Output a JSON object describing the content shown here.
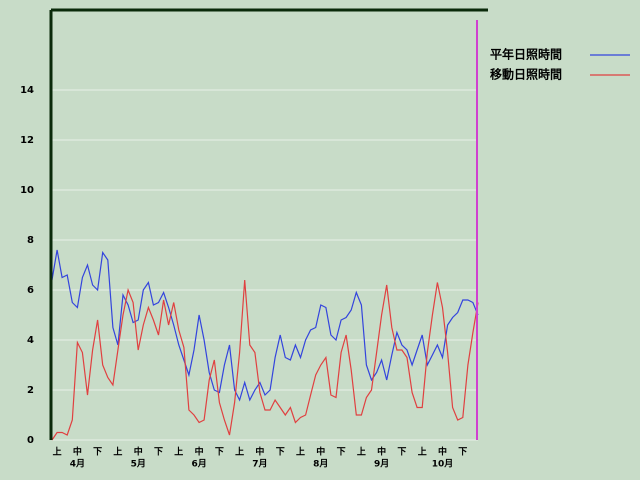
{
  "chart_data": {
    "type": "line",
    "categories": [
      null,
      "上",
      null,
      null,
      null,
      "中",
      null,
      null,
      null,
      "下",
      null,
      null,
      null,
      "上",
      null,
      null,
      null,
      "中",
      null,
      null,
      null,
      "下",
      null,
      null,
      null,
      "上",
      null,
      null,
      null,
      "中",
      null,
      null,
      null,
      "下",
      null,
      null,
      null,
      "上",
      null,
      null,
      null,
      "中",
      null,
      null,
      null,
      "下",
      null,
      null,
      null,
      "上",
      null,
      null,
      null,
      "中",
      null,
      null,
      null,
      "下",
      null,
      null,
      null,
      "上",
      null,
      null,
      null,
      "中",
      null,
      null,
      null,
      "下",
      null,
      null,
      null,
      "上",
      null,
      null,
      null,
      "中",
      null,
      null,
      null,
      "下",
      null,
      null,
      null
    ],
    "month_labels": [
      "4月",
      "5月",
      "6月",
      "7月",
      "8月",
      "9月",
      "10月"
    ],
    "series": [
      {
        "name": "平年日照時間",
        "color": "#3344dd",
        "values": [
          6.4,
          7.6,
          6.5,
          6.6,
          5.5,
          5.3,
          6.5,
          7.0,
          6.2,
          6.0,
          7.5,
          7.2,
          4.5,
          3.8,
          5.8,
          5.4,
          4.7,
          4.8,
          6.0,
          6.3,
          5.4,
          5.5,
          5.9,
          5.3,
          4.6,
          3.8,
          3.2,
          2.6,
          3.6,
          5.0,
          4.0,
          2.7,
          2.0,
          1.9,
          3.0,
          3.8,
          2.0,
          1.6,
          2.3,
          1.6,
          2.0,
          2.3,
          1.8,
          2.0,
          3.3,
          4.2,
          3.3,
          3.2,
          3.8,
          3.3,
          4.0,
          4.4,
          4.5,
          5.4,
          5.3,
          4.2,
          4.0,
          4.8,
          4.9,
          5.2,
          5.9,
          5.4,
          3.0,
          2.4,
          2.7,
          3.2,
          2.4,
          3.4,
          4.3,
          3.8,
          3.6,
          3.0,
          3.6,
          4.2,
          3.0,
          3.4,
          3.8,
          3.3,
          4.6,
          4.9,
          5.1,
          5.6,
          5.6,
          5.5,
          5.0
        ]
      },
      {
        "name": "移動日照時間",
        "color": "#e04040",
        "values": [
          0,
          0.3,
          0.3,
          0.2,
          0.8,
          3.9,
          3.5,
          1.8,
          3.6,
          4.8,
          3.0,
          2.5,
          2.2,
          3.6,
          5.0,
          6.0,
          5.5,
          3.6,
          4.6,
          5.3,
          4.8,
          4.2,
          5.6,
          4.6,
          5.5,
          4.4,
          3.7,
          1.2,
          1.0,
          0.7,
          0.8,
          2.4,
          3.2,
          1.5,
          0.8,
          0.2,
          1.5,
          3.5,
          6.4,
          3.8,
          3.5,
          1.9,
          1.2,
          1.2,
          1.6,
          1.3,
          1.0,
          1.3,
          0.7,
          0.9,
          1.0,
          1.8,
          2.6,
          3.0,
          3.3,
          1.8,
          1.7,
          3.5,
          4.2,
          2.8,
          1.0,
          1.0,
          1.7,
          2.0,
          3.5,
          5.0,
          6.2,
          4.5,
          3.6,
          3.6,
          3.3,
          1.9,
          1.3,
          1.3,
          3.5,
          5.0,
          6.3,
          5.3,
          3.5,
          1.3,
          0.8,
          0.9,
          3.0,
          4.3,
          5.5
        ]
      }
    ],
    "ylim": [
      0,
      17.2
    ],
    "yticks": [
      0,
      2,
      4,
      6,
      8,
      10,
      12,
      14
    ],
    "legend": "right",
    "grid": true
  }
}
